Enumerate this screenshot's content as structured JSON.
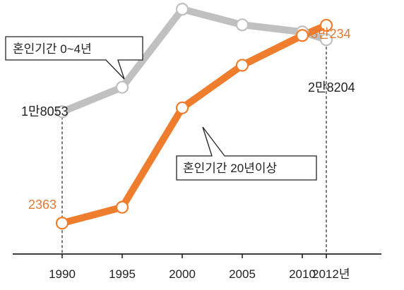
{
  "chart_data": {
    "type": "line",
    "x": [
      1990,
      1995,
      2000,
      2005,
      2010,
      2012
    ],
    "x_tick_labels": [
      "1990",
      "1995",
      "2000",
      "2005",
      "2010",
      "2012년"
    ],
    "ylim": [
      0,
      33000
    ],
    "grid": false,
    "series": [
      {
        "name": "혼인기간 0~4년",
        "color": "#c0c0c0",
        "values": [
          18053,
          21500,
          32500,
          30300,
          29300,
          28204
        ]
      },
      {
        "name": "혼인기간 20년이상",
        "color": "#ef7d2e",
        "values": [
          2363,
          4600,
          18600,
          24600,
          28800,
          30234
        ]
      }
    ],
    "annotations": {
      "gray_start_label": "1만8053",
      "gray_end_label": "2만8204",
      "orange_start_label": "2363",
      "orange_end_label": "3만234"
    },
    "colors": {
      "label_dark": "#222222",
      "label_orange": "#e27a34",
      "axis": "#222222"
    }
  }
}
